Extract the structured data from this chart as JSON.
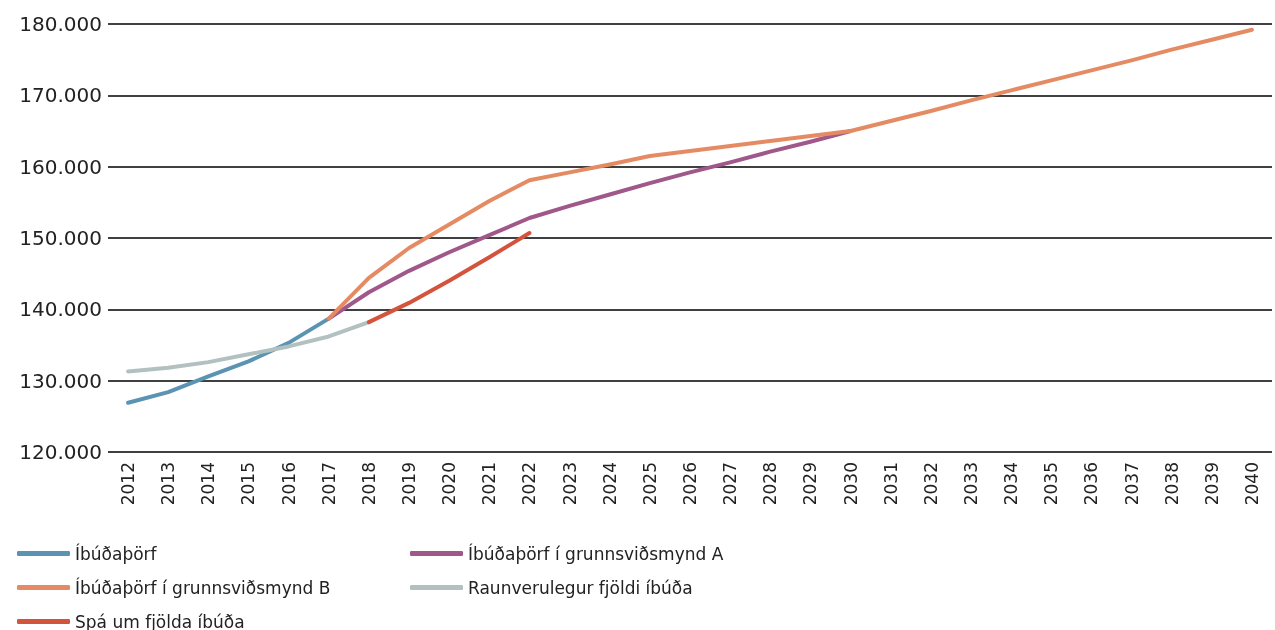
{
  "chart_data": {
    "type": "line",
    "categories": [
      "2012",
      "2013",
      "2014",
      "2015",
      "2016",
      "2017",
      "2018",
      "2019",
      "2020",
      "2021",
      "2022",
      "2023",
      "2024",
      "2025",
      "2026",
      "2027",
      "2028",
      "2029",
      "2030",
      "2031",
      "2032",
      "2033",
      "2034",
      "2035",
      "2036",
      "2037",
      "2038",
      "2039",
      "2040"
    ],
    "series": [
      {
        "name": "Íbúðaþörf",
        "color": "#5b93b3",
        "values": [
          126900,
          128400,
          130600,
          132700,
          135300,
          138700,
          null,
          null,
          null,
          null,
          null,
          null,
          null,
          null,
          null,
          null,
          null,
          null,
          null,
          null,
          null,
          null,
          null,
          null,
          null,
          null,
          null,
          null,
          null
        ]
      },
      {
        "name": "Íbúðaþörf í grunnsviðsmynd A",
        "color": "#a0578a",
        "values": [
          null,
          null,
          null,
          null,
          null,
          138700,
          142400,
          145400,
          148000,
          150400,
          152800,
          154500,
          156100,
          157700,
          159200,
          160600,
          162100,
          163500,
          165000,
          null,
          null,
          null,
          null,
          null,
          null,
          null,
          null,
          null,
          null
        ]
      },
      {
        "name": "Íbúðaþörf í grunnsviðsmynd B",
        "color": "#e58b63",
        "values": [
          null,
          null,
          null,
          null,
          null,
          138700,
          144400,
          148600,
          151900,
          155200,
          158100,
          159200,
          160300,
          161500,
          162200,
          162900,
          163600,
          164300,
          165000,
          166400,
          167800,
          169300,
          170700,
          172100,
          173500,
          174900,
          176400,
          177800,
          179200
        ]
      },
      {
        "name": "Raunverulegur fjöldi íbúða",
        "color": "#b3c0c0",
        "values": [
          131300,
          131800,
          132600,
          133700,
          134800,
          136200,
          138200,
          null,
          null,
          null,
          null,
          null,
          null,
          null,
          null,
          null,
          null,
          null,
          null,
          null,
          null,
          null,
          null,
          null,
          null,
          null,
          null,
          null,
          null
        ]
      },
      {
        "name": "Spá um fjölda íbúða",
        "color": "#d4533c",
        "values": [
          null,
          null,
          null,
          null,
          null,
          null,
          138200,
          140900,
          144000,
          147300,
          150700,
          null,
          null,
          null,
          null,
          null,
          null,
          null,
          null,
          null,
          null,
          null,
          null,
          null,
          null,
          null,
          null,
          null,
          null
        ]
      }
    ],
    "ylim": [
      120000,
      180000
    ],
    "yticks": [
      {
        "value": 120000,
        "label": "120.000"
      },
      {
        "value": 130000,
        "label": "130.000"
      },
      {
        "value": 140000,
        "label": "140.000"
      },
      {
        "value": 150000,
        "label": "150.000"
      },
      {
        "value": 160000,
        "label": "160.000"
      },
      {
        "value": 170000,
        "label": "170.000"
      },
      {
        "value": 180000,
        "label": "180.000"
      }
    ],
    "grid": "y",
    "legend": "bottom",
    "marker": "none",
    "line_style": "solid"
  }
}
